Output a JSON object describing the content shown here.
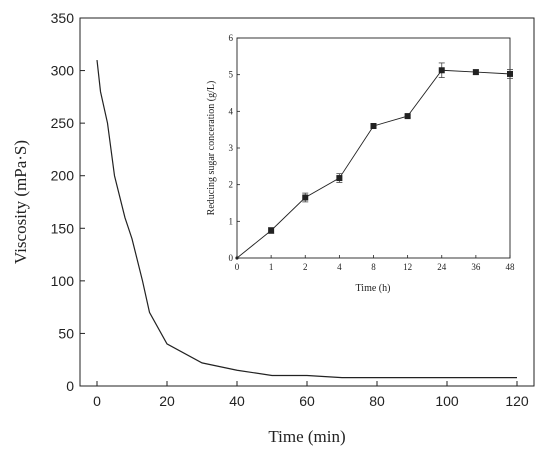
{
  "chart_data": [
    {
      "type": "line",
      "title": "",
      "xlabel": "Time (min)",
      "ylabel": "Viscosity (mPa·S)",
      "xlim": [
        0,
        120
      ],
      "ylim": [
        0,
        350
      ],
      "xticks": [
        0,
        20,
        40,
        60,
        80,
        100,
        120
      ],
      "yticks": [
        0,
        50,
        100,
        150,
        200,
        250,
        300,
        350
      ],
      "grid": false,
      "legend": "none",
      "series": [
        {
          "color": "#222222",
          "x": [
            0,
            1,
            3,
            5,
            8,
            10,
            13,
            15,
            20,
            30,
            40,
            50,
            60,
            70,
            80,
            90,
            100,
            120
          ],
          "y": [
            310,
            280,
            250,
            200,
            160,
            140,
            100,
            70,
            40,
            22,
            15,
            10,
            10,
            8,
            8,
            8,
            8,
            8
          ]
        }
      ]
    },
    {
      "type": "line",
      "title": "",
      "xlabel": "Time (h)",
      "ylabel": "Reducing sugar conceration (g/L)",
      "categories": [
        "0",
        "1",
        "2",
        "4",
        "8",
        "12",
        "24",
        "36",
        "48"
      ],
      "ylim": [
        0,
        6
      ],
      "yticks": [
        0,
        1,
        2,
        3,
        4,
        5,
        6
      ],
      "grid": false,
      "legend": "none",
      "marker": "square",
      "series": [
        {
          "color": "#222222",
          "values": [
            0,
            0.75,
            1.65,
            2.18,
            3.6,
            3.87,
            5.12,
            5.07,
            5.02
          ],
          "errors": [
            0,
            0.08,
            0.12,
            0.12,
            0.04,
            0.03,
            0.2,
            0.06,
            0.12
          ]
        }
      ]
    }
  ]
}
